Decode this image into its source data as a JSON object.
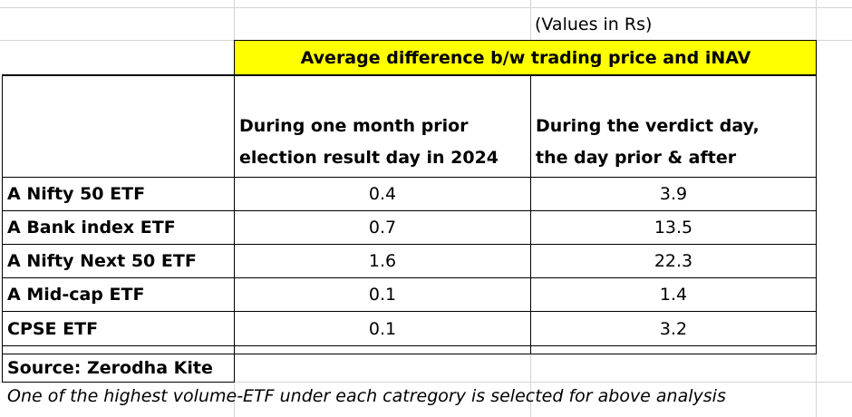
{
  "units_note": "(Values in Rs)",
  "group_header": "Average difference b/w trading price and iNAV",
  "columns": [
    {
      "line1": "During one month prior",
      "line2": "election result day in 2024"
    },
    {
      "line1": "During the verdict day,",
      "line2": "the day prior & after"
    }
  ],
  "rows": [
    {
      "label": "A Nifty 50 ETF",
      "v1": "0.4",
      "v2": "3.9"
    },
    {
      "label": "A Bank index ETF",
      "v1": "0.7",
      "v2": "13.5"
    },
    {
      "label": "A Nifty Next 50 ETF",
      "v1": "1.6",
      "v2": "22.3"
    },
    {
      "label": "A Mid-cap ETF",
      "v1": "0.1",
      "v2": "1.4"
    },
    {
      "label": "CPSE ETF",
      "v1": "0.1",
      "v2": "3.2"
    }
  ],
  "source": "Source: Zerodha Kite",
  "footnote": "One of the highest volume-ETF under each catregory is selected for above analysis",
  "colors": {
    "highlight": "#ffff00",
    "border": "#000000",
    "gridline": "#d4d4d4"
  }
}
